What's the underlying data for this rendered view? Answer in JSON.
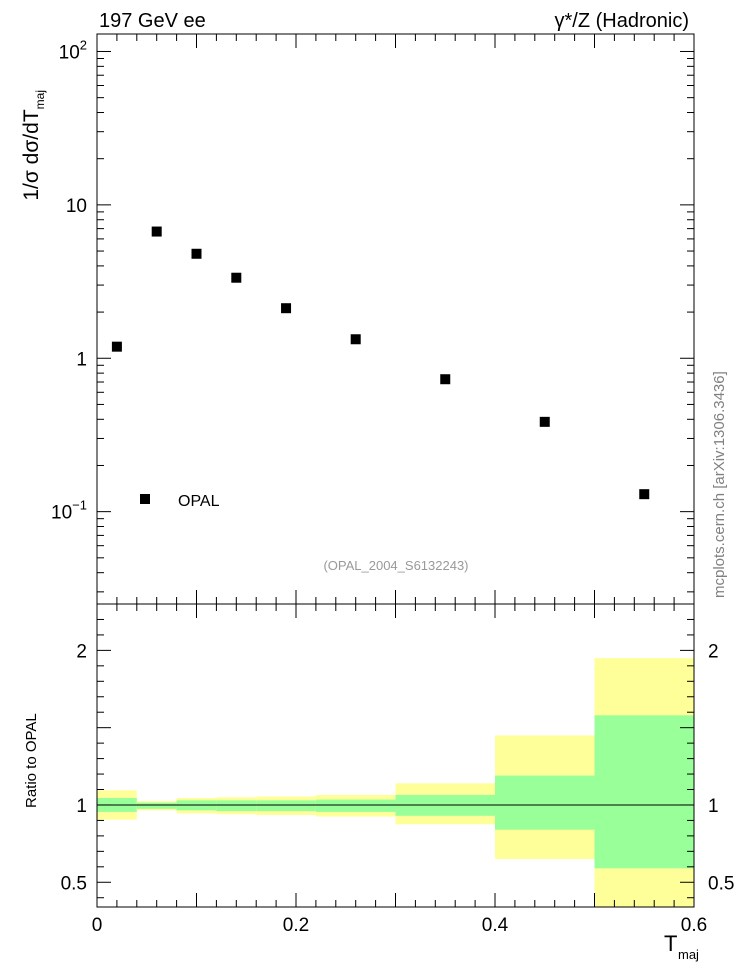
{
  "header": {
    "left": "197 GeV ee",
    "right": "γ*/Z (Hadronic)"
  },
  "side_label": "mcplots.cern.ch [arXiv:1306.3436]",
  "watermark": "(OPAL_2004_S6132243)",
  "chart_data": [
    {
      "type": "scatter",
      "ylabel": "1/σ dσ/dT",
      "ylabel_sub": "maj",
      "yscale": "log",
      "xlim": [
        0,
        0.6
      ],
      "ylim": [
        0.025,
        130
      ],
      "yticks": [
        {
          "value": 100,
          "base": "10",
          "exp": "2"
        },
        {
          "value": 10,
          "base": "10",
          "exp": ""
        },
        {
          "value": 1,
          "base": "1",
          "exp": ""
        },
        {
          "value": 0.1,
          "base": "10",
          "exp": "−1"
        }
      ],
      "legend": {
        "placement": "bottom-left",
        "entries": [
          "OPAL"
        ]
      },
      "series": [
        {
          "name": "OPAL",
          "x": [
            0.02,
            0.06,
            0.1,
            0.14,
            0.19,
            0.26,
            0.35,
            0.45,
            0.55
          ],
          "y": [
            1.19,
            6.7,
            4.8,
            3.35,
            2.12,
            1.33,
            0.73,
            0.385,
            0.13
          ]
        }
      ]
    },
    {
      "type": "area",
      "ylabel": "Ratio to OPAL",
      "xlabel": "T",
      "xlabel_sub": "maj",
      "xlim": [
        0,
        0.6
      ],
      "ylim": [
        0.34,
        2.3
      ],
      "xticks": [
        "0",
        "0.2",
        "0.4",
        "0.6"
      ],
      "yticks": [
        "0.5",
        "1",
        "2"
      ],
      "colors": {
        "inner": "#99ff99",
        "outer": "#ffff99"
      },
      "bins": [
        {
          "x0": 0.0,
          "x1": 0.04,
          "inner": [
            0.955,
            1.045
          ],
          "outer": [
            0.905,
            1.095
          ]
        },
        {
          "x0": 0.04,
          "x1": 0.08,
          "inner": [
            0.975,
            1.015
          ],
          "outer": [
            0.965,
            1.025
          ]
        },
        {
          "x0": 0.08,
          "x1": 0.12,
          "inner": [
            0.965,
            1.03
          ],
          "outer": [
            0.945,
            1.045
          ]
        },
        {
          "x0": 0.12,
          "x1": 0.16,
          "inner": [
            0.96,
            1.03
          ],
          "outer": [
            0.94,
            1.05
          ]
        },
        {
          "x0": 0.16,
          "x1": 0.22,
          "inner": [
            0.96,
            1.03
          ],
          "outer": [
            0.935,
            1.055
          ]
        },
        {
          "x0": 0.22,
          "x1": 0.3,
          "inner": [
            0.955,
            1.035
          ],
          "outer": [
            0.925,
            1.065
          ]
        },
        {
          "x0": 0.3,
          "x1": 0.4,
          "inner": [
            0.93,
            1.065
          ],
          "outer": [
            0.875,
            1.14
          ]
        },
        {
          "x0": 0.4,
          "x1": 0.5,
          "inner": [
            0.84,
            1.19
          ],
          "outer": [
            0.65,
            1.45
          ]
        },
        {
          "x0": 0.5,
          "x1": 0.6,
          "inner": [
            0.59,
            1.58
          ],
          "outer": [
            0.34,
            1.95
          ]
        }
      ],
      "reference": 1
    }
  ]
}
